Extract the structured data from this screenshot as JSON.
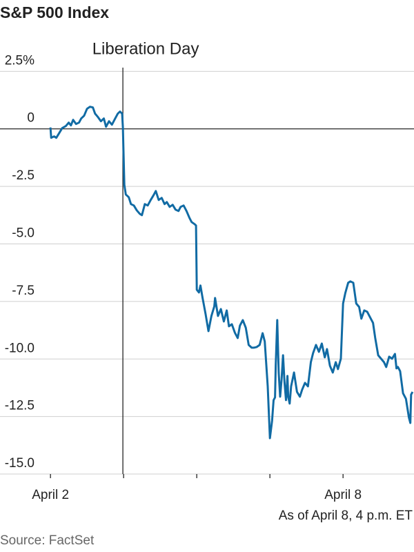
{
  "chart_data": {
    "type": "line",
    "title": "S&P 500 Index",
    "annotation": {
      "text": "Liberation Day",
      "x": 0.99
    },
    "note": "As of April 8, 4 p.m. ET",
    "source": "Source: FactSet",
    "xlim": [
      -0.69,
      4.97
    ],
    "xticks": [
      {
        "value": 0,
        "label": "April 2"
      },
      {
        "value": 1,
        "label": null
      },
      {
        "value": 2,
        "label": null
      },
      {
        "value": 3,
        "label": null
      },
      {
        "value": 4,
        "label": "April 8"
      }
    ],
    "ylim": [
      -15,
      2.6
    ],
    "yticks": [
      {
        "value": 2.5,
        "label": "2.5%"
      },
      0,
      -2.5,
      {
        "value": -5,
        "label": "-5.0"
      },
      -7.5,
      {
        "value": -10,
        "label": "-10.0"
      },
      -12.5,
      {
        "value": -15,
        "label": "-15.0"
      }
    ],
    "grid": true,
    "x": [
      0,
      0.01,
      0.05,
      0.08,
      0.12,
      0.16,
      0.21,
      0.25,
      0.28,
      0.31,
      0.35,
      0.39,
      0.42,
      0.46,
      0.5,
      0.54,
      0.58,
      0.61,
      0.65,
      0.69,
      0.73,
      0.76,
      0.8,
      0.84,
      0.88,
      0.92,
      0.95,
      0.98,
      0.99,
      1.01,
      1.03,
      1.07,
      1.1,
      1.14,
      1.18,
      1.22,
      1.25,
      1.29,
      1.33,
      1.37,
      1.41,
      1.44,
      1.48,
      1.52,
      1.56,
      1.59,
      1.63,
      1.67,
      1.71,
      1.75,
      1.78,
      1.82,
      1.86,
      1.9,
      1.93,
      1.97,
      1.99,
      2.0,
      2.03,
      2.05,
      2.08,
      2.12,
      2.16,
      2.2,
      2.24,
      2.25,
      2.29,
      2.33,
      2.37,
      2.41,
      2.44,
      2.48,
      2.52,
      2.56,
      2.59,
      2.63,
      2.67,
      2.71,
      2.75,
      2.78,
      2.82,
      2.86,
      2.9,
      2.93,
      2.97,
      3.0,
      3.03,
      3.05,
      3.07,
      3.08,
      3.1,
      3.12,
      3.14,
      3.16,
      3.18,
      3.2,
      3.22,
      3.24,
      3.25,
      3.27,
      3.29,
      3.33,
      3.37,
      3.41,
      3.44,
      3.48,
      3.52,
      3.56,
      3.59,
      3.63,
      3.67,
      3.71,
      3.75,
      3.78,
      3.82,
      3.86,
      3.9,
      3.93,
      3.97,
      4.0,
      4.03,
      4.07,
      4.1,
      4.14,
      4.18,
      4.22,
      4.25,
      4.29,
      4.33,
      4.37,
      4.41,
      4.44,
      4.48,
      4.52,
      4.56,
      4.59,
      4.63,
      4.67,
      4.71,
      4.73,
      4.75,
      4.78,
      4.82,
      4.86,
      4.9,
      4.92,
      4.93,
      4.95
    ],
    "series": [
      {
        "name": "S&P 500",
        "color": "#116ba4",
        "values": [
          0.06,
          -0.39,
          -0.33,
          -0.39,
          -0.18,
          0.03,
          0.12,
          0.27,
          0.15,
          0.39,
          0.21,
          0.27,
          0.45,
          0.57,
          0.87,
          0.96,
          0.93,
          0.66,
          0.51,
          0.33,
          0.45,
          0.09,
          0.33,
          0.18,
          0.42,
          0.66,
          0.75,
          0.66,
          0.06,
          -2.43,
          -2.85,
          -2.97,
          -3.27,
          -3.33,
          -3.54,
          -3.69,
          -3.75,
          -3.27,
          -3.33,
          -3.09,
          -2.88,
          -2.7,
          -3.09,
          -3.0,
          -3.27,
          -3.18,
          -3.39,
          -3.3,
          -3.51,
          -3.57,
          -3.39,
          -3.33,
          -3.57,
          -3.87,
          -4.05,
          -4.14,
          -4.2,
          -6.99,
          -7.11,
          -6.81,
          -7.35,
          -8.04,
          -8.79,
          -8.13,
          -7.71,
          -7.35,
          -8.13,
          -7.83,
          -8.37,
          -7.89,
          -8.58,
          -8.49,
          -8.85,
          -9.09,
          -8.55,
          -8.31,
          -8.64,
          -9.39,
          -9.51,
          -9.51,
          -9.48,
          -9.39,
          -8.88,
          -9.24,
          -11.19,
          -13.44,
          -12.69,
          -11.79,
          -11.67,
          -10.29,
          -8.31,
          -10.59,
          -11.64,
          -10.89,
          -9.84,
          -11.04,
          -11.79,
          -10.74,
          -11.64,
          -11.94,
          -11.19,
          -10.59,
          -11.43,
          -11.64,
          -11.34,
          -11.04,
          -11.19,
          -10.14,
          -9.75,
          -9.39,
          -9.69,
          -9.33,
          -9.93,
          -9.57,
          -10.29,
          -10.59,
          -10.14,
          -10.44,
          -9.99,
          -7.59,
          -7.14,
          -6.69,
          -6.63,
          -6.69,
          -7.59,
          -7.74,
          -8.25,
          -7.89,
          -7.95,
          -8.19,
          -8.43,
          -9.09,
          -9.84,
          -9.99,
          -10.14,
          -10.35,
          -9.9,
          -9.99,
          -9.78,
          -10.41,
          -10.35,
          -10.53,
          -11.49,
          -11.73,
          -12.54,
          -12.78,
          -11.55,
          -11.43
        ]
      }
    ]
  }
}
